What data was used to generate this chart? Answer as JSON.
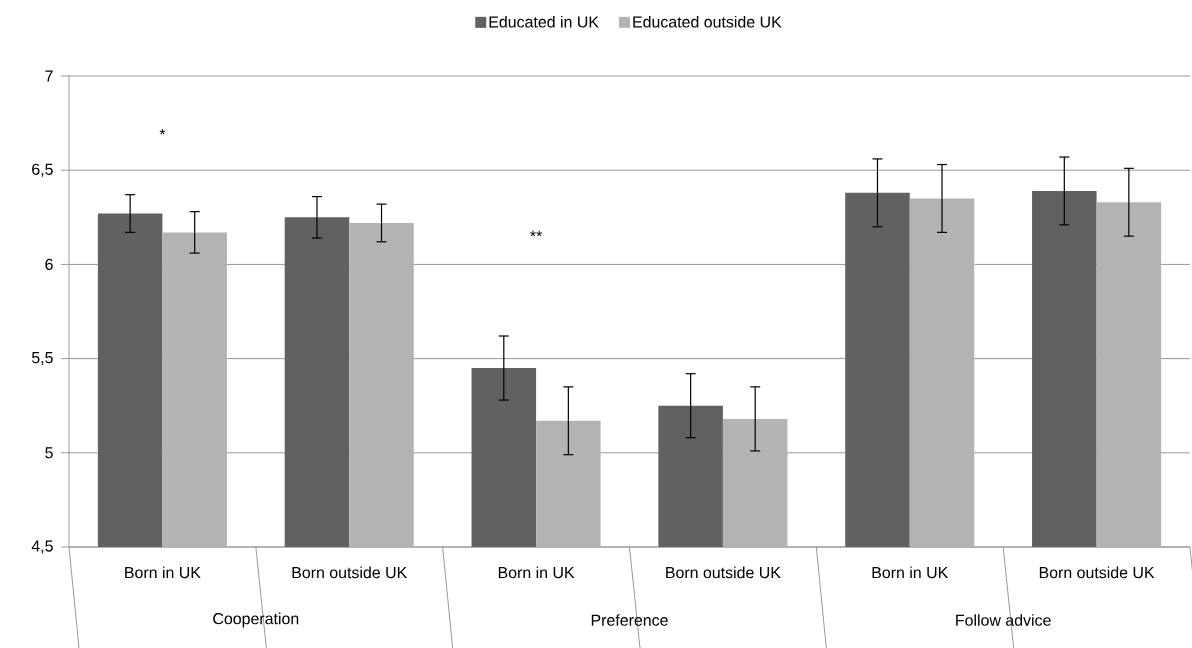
{
  "chart_data": {
    "type": "bar",
    "categories": [
      "Born in UK",
      "Born outside UK",
      "Born in UK",
      "Born outside UK",
      "Born in UK",
      "Born outside UK"
    ],
    "series": [
      {
        "name": "Educated in UK",
        "color": "#616161",
        "values": [
          6.27,
          6.25,
          5.45,
          5.25,
          6.38,
          6.39
        ],
        "errors": [
          0.1,
          0.11,
          0.17,
          0.17,
          0.18,
          0.18
        ]
      },
      {
        "name": "Educated outside UK",
        "color": "#b3b3b3",
        "values": [
          6.17,
          6.22,
          5.17,
          5.18,
          6.35,
          6.33
        ],
        "errors": [
          0.11,
          0.1,
          0.18,
          0.17,
          0.18,
          0.18
        ]
      }
    ],
    "ylim": [
      4.5,
      7
    ],
    "yticks": [
      {
        "value": 4.5,
        "label": "4,5"
      },
      5,
      {
        "value": 5.5,
        "label": "5,5"
      },
      6,
      {
        "value": 6.5,
        "label": "6,5"
      },
      7
    ],
    "grid": "y",
    "legend": "top",
    "annotations": [
      "Cooperation",
      "Preference",
      "Follow advice",
      "*",
      "**"
    ]
  }
}
